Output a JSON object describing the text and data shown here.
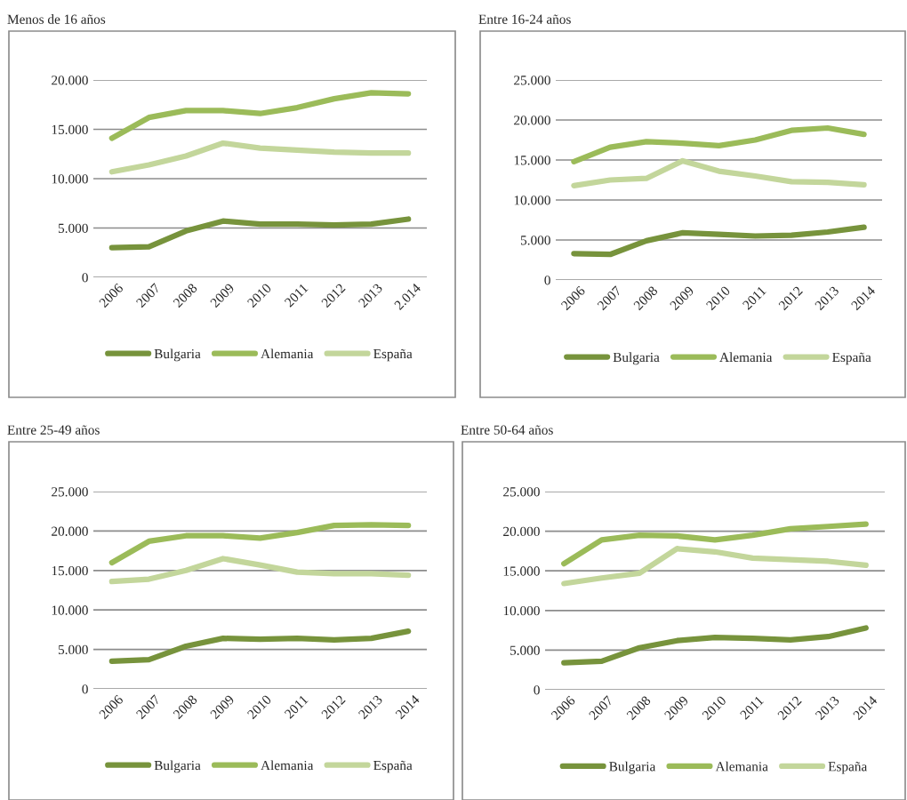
{
  "chart_data": [
    {
      "type": "line",
      "title": "Menos de 16 años",
      "categories": [
        "2006",
        "2007",
        "2008",
        "2009",
        "2010",
        "2011",
        "2012",
        "2013",
        "2.014"
      ],
      "ylim": [
        0,
        20000
      ],
      "yticks": [
        {
          "value": 0,
          "label": "0"
        },
        {
          "value": 5000,
          "label": "5.000"
        },
        {
          "value": 10000,
          "label": "10.000"
        },
        {
          "value": 15000,
          "label": "15.000"
        },
        {
          "value": 20000,
          "label": "20.000"
        }
      ],
      "grid": "y",
      "legend": "bottom",
      "series": [
        {
          "name": "Bulgaria",
          "color": "#77933c",
          "values": [
            3000,
            3100,
            4700,
            5700,
            5400,
            5400,
            5300,
            5400,
            5900
          ]
        },
        {
          "name": "Alemania",
          "color": "#9bbb59",
          "values": [
            14100,
            16200,
            16900,
            16900,
            16600,
            17200,
            18100,
            18700,
            18600
          ]
        },
        {
          "name": "España",
          "color": "#c3d69b",
          "values": [
            10700,
            11400,
            12300,
            13600,
            13100,
            12900,
            12700,
            12600,
            12600
          ]
        }
      ]
    },
    {
      "type": "line",
      "title": "Entre 16-24 años",
      "categories": [
        "2006",
        "2007",
        "2008",
        "2009",
        "2010",
        "2011",
        "2012",
        "2013",
        "2014"
      ],
      "ylim": [
        0,
        25000
      ],
      "yticks": [
        {
          "value": 0,
          "label": "0"
        },
        {
          "value": 5000,
          "label": "5.000"
        },
        {
          "value": 10000,
          "label": "10.000"
        },
        {
          "value": 15000,
          "label": "15.000"
        },
        {
          "value": 20000,
          "label": "20.000"
        },
        {
          "value": 25000,
          "label": "25.000"
        }
      ],
      "grid": "y",
      "legend": "bottom",
      "series": [
        {
          "name": "Bulgaria",
          "color": "#77933c",
          "values": [
            3300,
            3200,
            4900,
            5900,
            5700,
            5500,
            5600,
            6000,
            6600
          ]
        },
        {
          "name": "Alemania",
          "color": "#9bbb59",
          "values": [
            14800,
            16600,
            17300,
            17100,
            16800,
            17500,
            18700,
            19000,
            18200
          ]
        },
        {
          "name": "España",
          "color": "#c3d69b",
          "values": [
            11800,
            12500,
            12700,
            14900,
            13600,
            13000,
            12300,
            12200,
            11900
          ]
        }
      ]
    },
    {
      "type": "line",
      "title": "Entre 25-49 años",
      "categories": [
        "2006",
        "2007",
        "2008",
        "2009",
        "2010",
        "2011",
        "2012",
        "2013",
        "2014"
      ],
      "ylim": [
        0,
        25000
      ],
      "yticks": [
        {
          "value": 0,
          "label": "0"
        },
        {
          "value": 5000,
          "label": "5.000"
        },
        {
          "value": 10000,
          "label": "10.000"
        },
        {
          "value": 15000,
          "label": "15.000"
        },
        {
          "value": 20000,
          "label": "20.000"
        },
        {
          "value": 25000,
          "label": "25.000"
        }
      ],
      "grid": "y",
      "legend": "bottom",
      "series": [
        {
          "name": "Bulgaria",
          "color": "#77933c",
          "values": [
            3500,
            3700,
            5400,
            6400,
            6300,
            6400,
            6200,
            6400,
            7300
          ]
        },
        {
          "name": "Alemania",
          "color": "#9bbb59",
          "values": [
            16000,
            18700,
            19400,
            19400,
            19100,
            19800,
            20700,
            20800,
            20700
          ]
        },
        {
          "name": "España",
          "color": "#c3d69b",
          "values": [
            13600,
            13900,
            15000,
            16500,
            15700,
            14800,
            14600,
            14600,
            14400
          ]
        }
      ]
    },
    {
      "type": "line",
      "title": "Entre 50-64 años",
      "categories": [
        "2006",
        "2007",
        "2008",
        "2009",
        "2010",
        "2011",
        "2012",
        "2013",
        "2014"
      ],
      "ylim": [
        0,
        25000
      ],
      "yticks": [
        {
          "value": 0,
          "label": "0"
        },
        {
          "value": 5000,
          "label": "5.000"
        },
        {
          "value": 10000,
          "label": "10.000"
        },
        {
          "value": 15000,
          "label": "15.000"
        },
        {
          "value": 20000,
          "label": "20.000"
        },
        {
          "value": 25000,
          "label": "25.000"
        }
      ],
      "grid": "y",
      "legend": "bottom",
      "series": [
        {
          "name": "Bulgaria",
          "color": "#77933c",
          "values": [
            3400,
            3600,
            5300,
            6200,
            6600,
            6500,
            6300,
            6700,
            7800
          ]
        },
        {
          "name": "Alemania",
          "color": "#9bbb59",
          "values": [
            15900,
            18900,
            19500,
            19400,
            18900,
            19500,
            20300,
            20600,
            20900
          ]
        },
        {
          "name": "España",
          "color": "#c3d69b",
          "values": [
            13400,
            14100,
            14700,
            17800,
            17400,
            16600,
            16400,
            16200,
            15700
          ]
        }
      ]
    }
  ]
}
